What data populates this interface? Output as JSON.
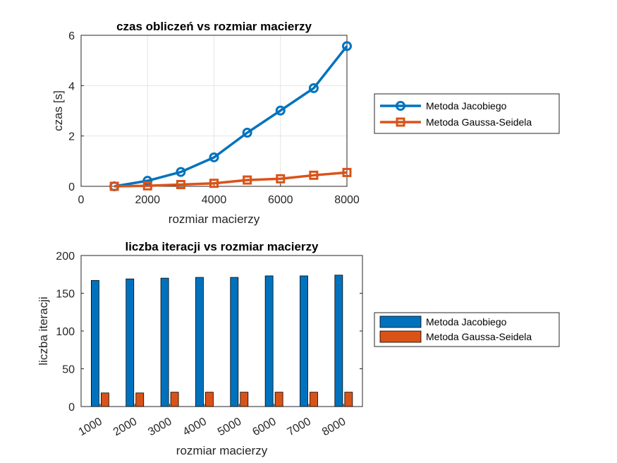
{
  "chart_data": [
    {
      "type": "line",
      "title": "czas obliczeń vs rozmiar macierzy",
      "xlabel": "rozmiar macierzy",
      "ylabel": "czas [s]",
      "xlim": [
        0,
        8000
      ],
      "ylim": [
        0,
        6
      ],
      "xticks": [
        "0",
        "2000",
        "4000",
        "6000",
        "8000"
      ],
      "yticks": [
        "0",
        "2",
        "4",
        "6"
      ],
      "grid": true,
      "legend_position": "outside-right",
      "x": [
        1000,
        2000,
        3000,
        4000,
        5000,
        6000,
        7000,
        8000
      ],
      "series": [
        {
          "name": "Metoda Jacobiego",
          "color": "#0072BD",
          "marker": "circle",
          "values": [
            0.0,
            0.22,
            0.57,
            1.15,
            2.13,
            3.01,
            3.9,
            5.57
          ]
        },
        {
          "name": "Metoda Gaussa-Seidela",
          "color": "#D95319",
          "marker": "square",
          "values": [
            0.0,
            0.02,
            0.07,
            0.12,
            0.25,
            0.3,
            0.44,
            0.55
          ]
        }
      ]
    },
    {
      "type": "bar",
      "title": "liczba iteracji vs rozmiar macierzy",
      "xlabel": "rozmiar macierzy",
      "ylabel": "liczba iteracji",
      "ylim": [
        0,
        200
      ],
      "yticks": [
        "0",
        "50",
        "100",
        "150",
        "200"
      ],
      "grid": false,
      "legend_position": "outside-right",
      "categories": [
        "1000",
        "2000",
        "3000",
        "4000",
        "5000",
        "6000",
        "7000",
        "8000"
      ],
      "series": [
        {
          "name": "Metoda Jacobiego",
          "color": "#0072BD",
          "values": [
            167,
            169,
            170,
            171,
            171,
            173,
            173,
            174
          ]
        },
        {
          "name": "Metoda Gaussa-Seidela",
          "color": "#D95319",
          "values": [
            18,
            18,
            19,
            19,
            19,
            19,
            19,
            19
          ]
        }
      ]
    }
  ]
}
